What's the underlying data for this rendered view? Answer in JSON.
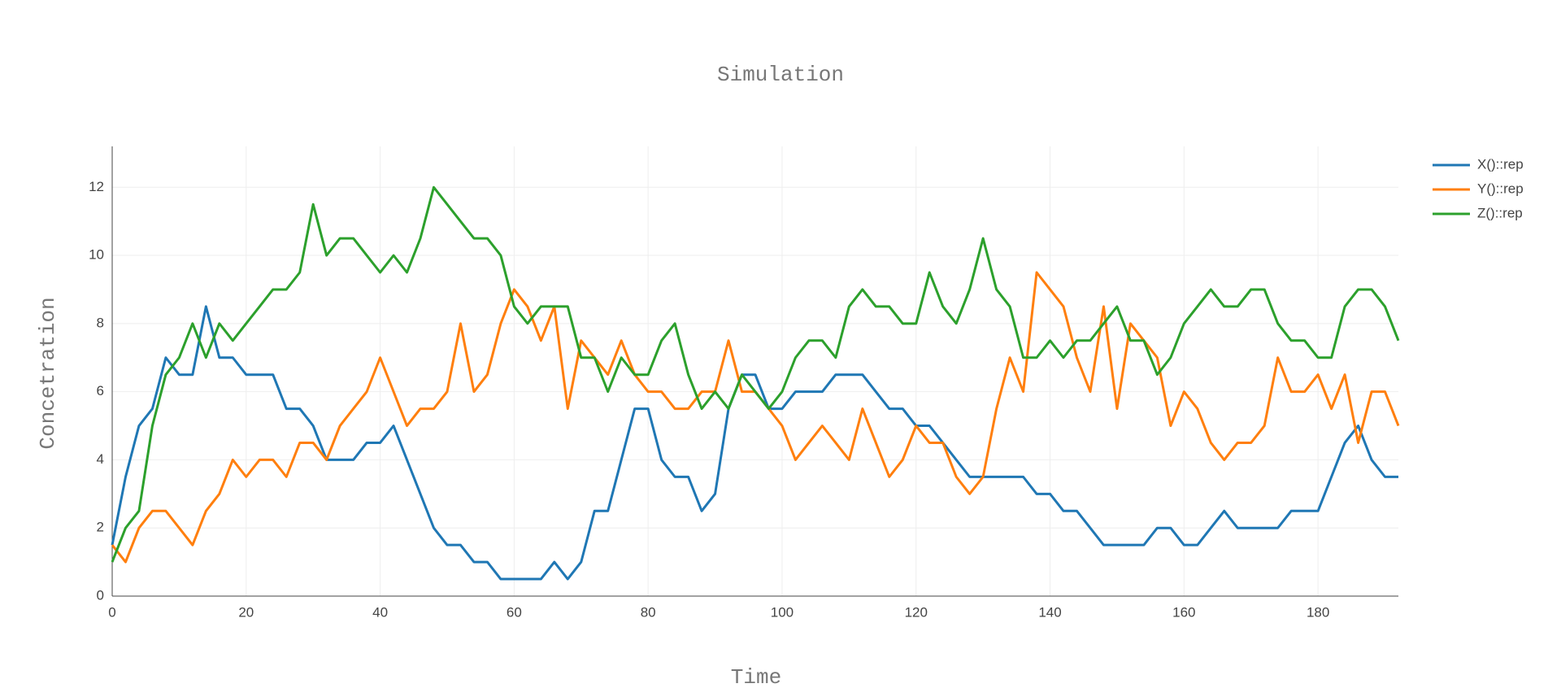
{
  "chart_data": {
    "type": "line",
    "title": "Simulation",
    "x_label": "Time",
    "y_label": "Concetration",
    "x": [
      0,
      2,
      4,
      6,
      8,
      10,
      12,
      14,
      16,
      18,
      20,
      22,
      24,
      26,
      28,
      30,
      32,
      34,
      36,
      38,
      40,
      42,
      44,
      46,
      48,
      50,
      52,
      54,
      56,
      58,
      60,
      62,
      64,
      66,
      68,
      70,
      72,
      74,
      76,
      78,
      80,
      82,
      84,
      86,
      88,
      90,
      92,
      94,
      96,
      98,
      100,
      102,
      104,
      106,
      108,
      110,
      112,
      114,
      116,
      118,
      120,
      122,
      124,
      126,
      128,
      130,
      132,
      134,
      136,
      138,
      140,
      142,
      144,
      146,
      148,
      150,
      152,
      154,
      156,
      158,
      160,
      162,
      164,
      166,
      168,
      170,
      172,
      174,
      176,
      178,
      180,
      182,
      184,
      186,
      188,
      190,
      192
    ],
    "series": [
      {
        "name": "X()::rep",
        "color": "#1f77b4",
        "values": [
          1.5,
          3.5,
          5,
          5.5,
          7,
          6.5,
          6.5,
          8.5,
          7,
          7,
          6.5,
          6.5,
          6.5,
          5.5,
          5.5,
          5,
          4,
          4,
          4,
          4.5,
          4.5,
          5,
          4,
          3,
          2,
          1.5,
          1.5,
          1,
          1,
          0.5,
          0.5,
          0.5,
          0.5,
          1,
          0.5,
          1,
          2.5,
          2.5,
          4,
          5.5,
          5.5,
          4,
          3.5,
          3.5,
          2.5,
          3,
          5.5,
          6.5,
          6.5,
          5.5,
          5.5,
          6,
          6,
          6,
          6.5,
          6.5,
          6.5,
          6,
          5.5,
          5.5,
          5,
          5,
          4.5,
          4,
          3.5,
          3.5,
          3.5,
          3.5,
          3.5,
          3,
          3,
          2.5,
          2.5,
          2,
          1.5,
          1.5,
          1.5,
          1.5,
          2,
          2,
          1.5,
          1.5,
          2,
          2.5,
          2,
          2,
          2,
          2,
          2.5,
          2.5,
          2.5,
          3.5,
          4.5,
          5,
          4,
          3.5,
          3.5
        ]
      },
      {
        "name": "Y()::rep",
        "color": "#ff7f0e",
        "values": [
          1.5,
          1,
          2,
          2.5,
          2.5,
          2,
          1.5,
          2.5,
          3,
          4,
          3.5,
          4,
          4,
          3.5,
          4.5,
          4.5,
          4,
          5,
          5.5,
          6,
          7,
          6,
          5,
          5.5,
          5.5,
          6,
          8,
          6,
          6.5,
          8,
          9,
          8.5,
          7.5,
          8.5,
          5.5,
          7.5,
          7,
          6.5,
          7.5,
          6.5,
          6,
          6,
          5.5,
          5.5,
          6,
          6,
          7.5,
          6,
          6,
          5.5,
          5,
          4,
          4.5,
          5,
          4.5,
          4,
          5.5,
          4.5,
          3.5,
          4,
          5,
          4.5,
          4.5,
          3.5,
          3,
          3.5,
          5.5,
          7,
          6,
          9.5,
          9,
          8.5,
          7,
          6,
          8.5,
          5.5,
          8,
          7.5,
          7,
          5,
          6,
          5.5,
          4.5,
          4,
          4.5,
          4.5,
          5,
          7,
          6,
          6,
          6.5,
          5.5,
          6.5,
          4.5,
          6,
          6,
          5
        ]
      },
      {
        "name": "Z()::rep",
        "color": "#2ca02c",
        "values": [
          1,
          2,
          2.5,
          5,
          6.5,
          7,
          8,
          7,
          8,
          7.5,
          8,
          8.5,
          9,
          9,
          9.5,
          11.5,
          10,
          10.5,
          10.5,
          10,
          9.5,
          10,
          9.5,
          10.5,
          12,
          11.5,
          11,
          10.5,
          10.5,
          10,
          8.5,
          8,
          8.5,
          8.5,
          8.5,
          7,
          7,
          6,
          7,
          6.5,
          6.5,
          7.5,
          8,
          6.5,
          5.5,
          6,
          5.5,
          6.5,
          6,
          5.5,
          6,
          7,
          7.5,
          7.5,
          7,
          8.5,
          9,
          8.5,
          8.5,
          8,
          8,
          9.5,
          8.5,
          8,
          9,
          10.5,
          9,
          8.5,
          7,
          7,
          7.5,
          7,
          7.5,
          7.5,
          8,
          8.5,
          7.5,
          7.5,
          6.5,
          7,
          8,
          8.5,
          9,
          8.5,
          8.5,
          9,
          9,
          8,
          7.5,
          7.5,
          7,
          7,
          8.5,
          9,
          9,
          8.5,
          7.5
        ]
      }
    ],
    "xlim": [
      0,
      192
    ],
    "ylim": [
      0,
      13.2
    ],
    "xticks": [
      0,
      20,
      40,
      60,
      80,
      100,
      120,
      140,
      160,
      180
    ],
    "yticks": [
      0,
      2,
      4,
      6,
      8,
      10,
      12
    ],
    "grid": true
  }
}
